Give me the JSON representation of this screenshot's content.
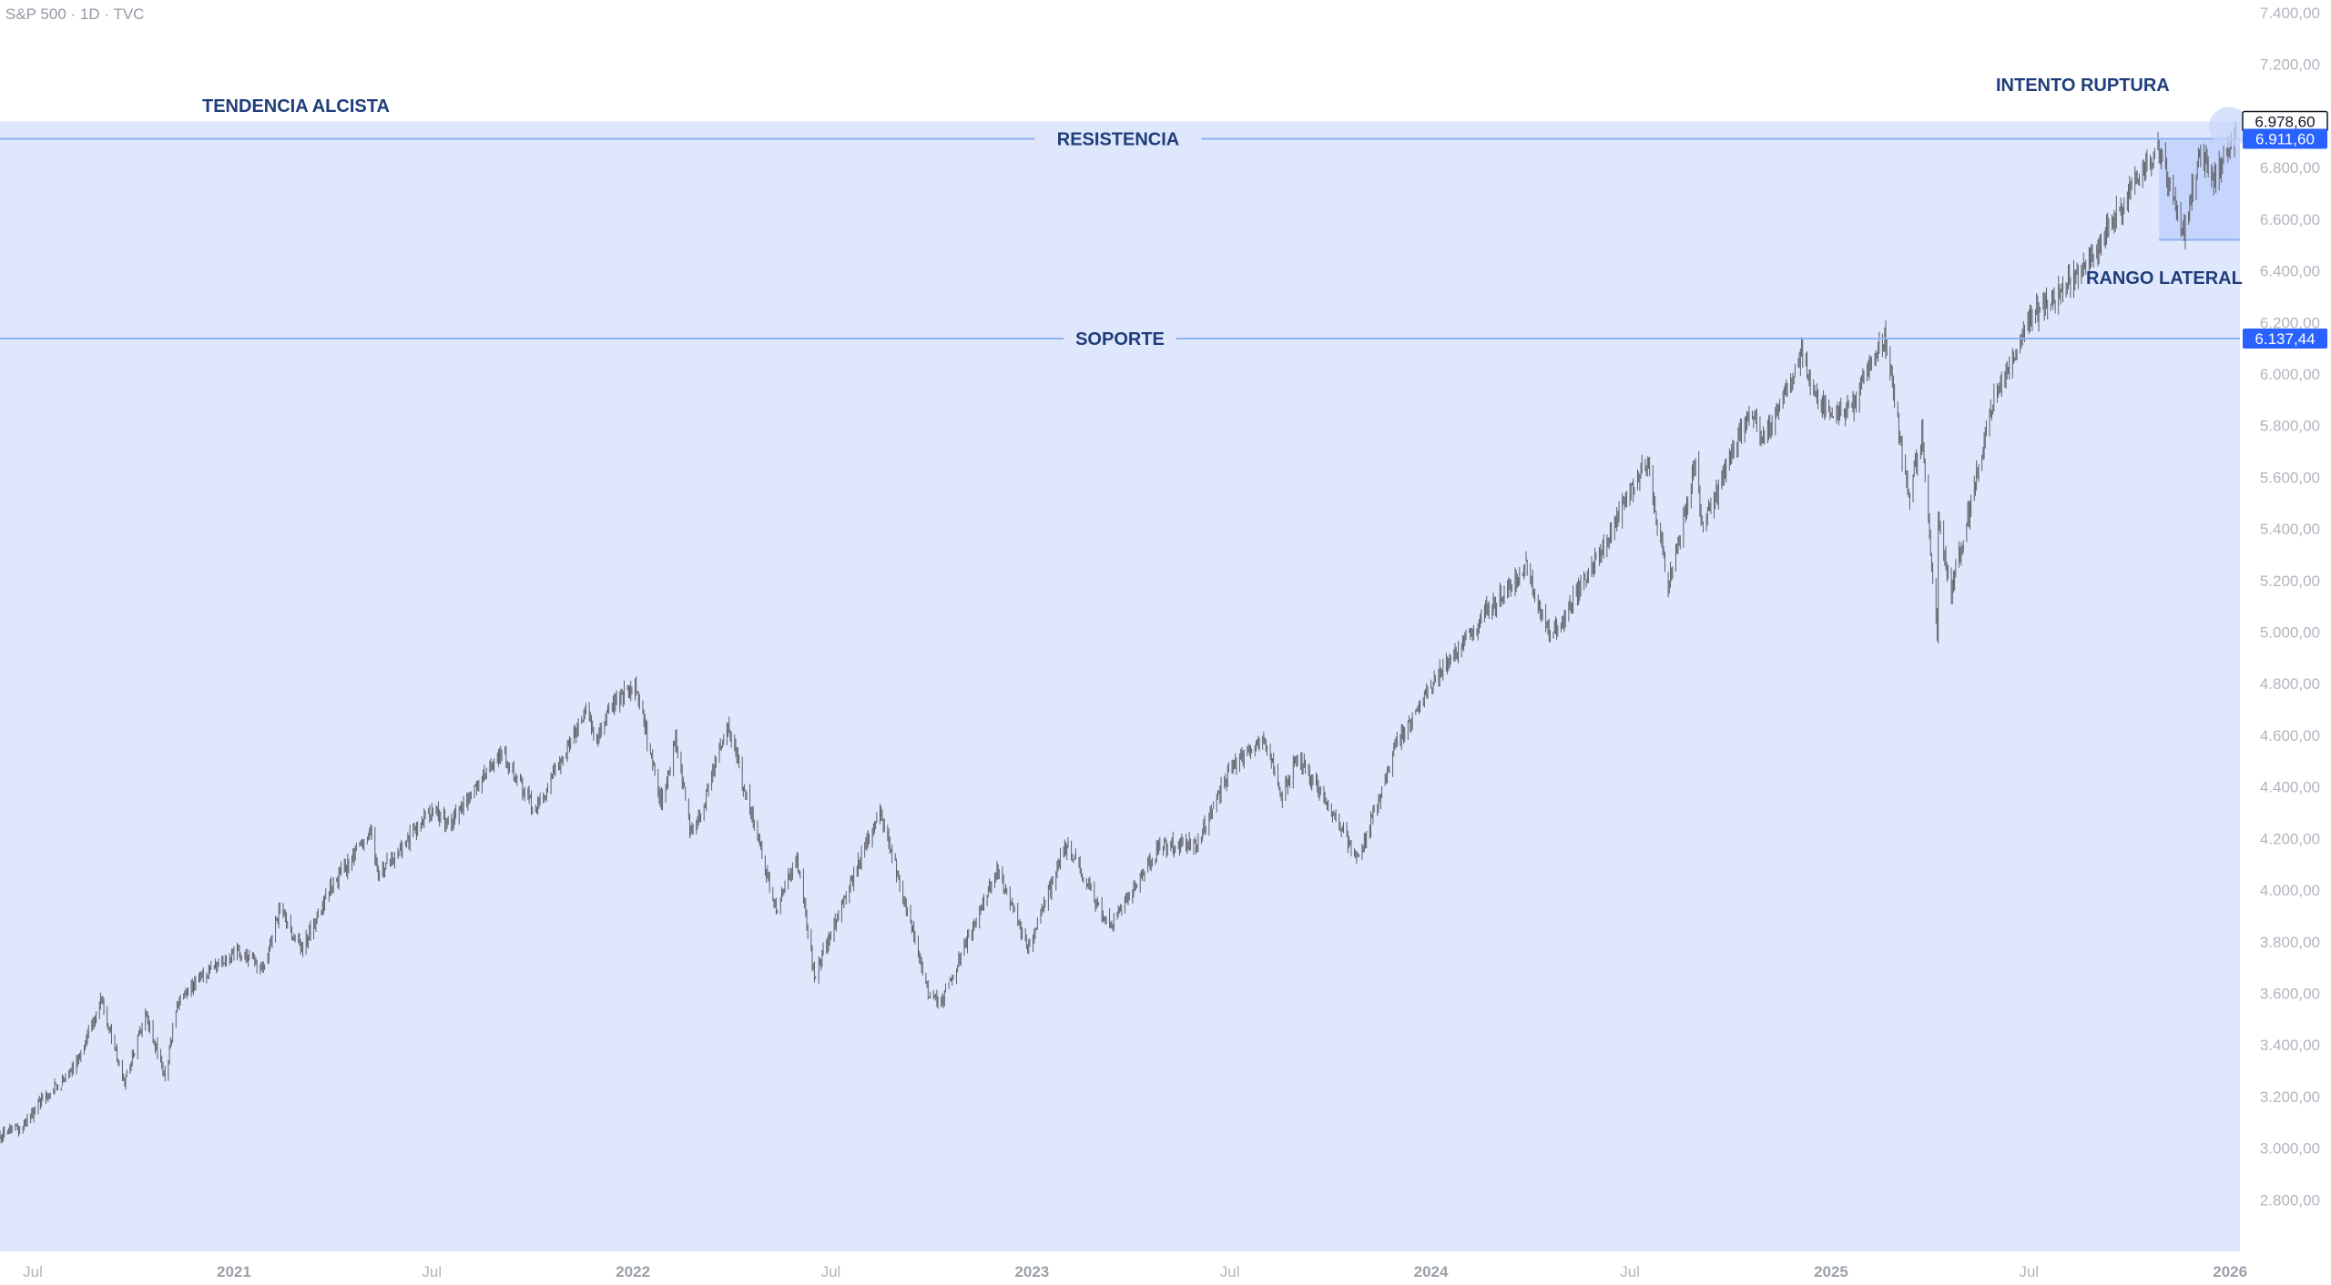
{
  "header": {
    "symbol": "S&P 500",
    "interval": "1D",
    "source": "TVC",
    "separator": " · "
  },
  "colors": {
    "background": "#ffffff",
    "zone_fill": "#dfe7fc",
    "range_fill": "#c6d5fb",
    "level_line": "#8fb0ef",
    "candle": "#5d5f66",
    "annotation_text": "#1f3d7a",
    "axis_text": "#b2b5be",
    "axis_year_text": "#9aa0aa",
    "tag_blue": "#2962ff",
    "tag_dark": "#131722"
  },
  "chart_data": {
    "type": "candlestick",
    "interval": "1D",
    "ylim": [
      2600,
      7400
    ],
    "y_ticks": [
      2800,
      3000,
      3200,
      3400,
      3600,
      3800,
      4000,
      4200,
      4400,
      4600,
      4800,
      5000,
      5200,
      5400,
      5600,
      5800,
      6000,
      6200,
      6400,
      6600,
      6800,
      7000,
      7200,
      7400
    ],
    "y_tick_labels": [
      "2.800,00",
      "3.000,00",
      "3.200,00",
      "3.400,00",
      "3.600,00",
      "3.800,00",
      "4.000,00",
      "4.200,00",
      "4.400,00",
      "4.600,00",
      "4.800,00",
      "5.000,00",
      "5.200,00",
      "5.400,00",
      "5.600,00",
      "5.800,00",
      "6.000,00",
      "6.200,00",
      "6.400,00",
      "6.600,00",
      "6.800,00",
      "7.000,00",
      "7.200,00",
      "7.400,00"
    ],
    "xlim": [
      "2020-06-01",
      "2026-01-10"
    ],
    "x_ticks": [
      {
        "date": "2020-07-01",
        "label": "Jul",
        "year": false
      },
      {
        "date": "2021-01-01",
        "label": "2021",
        "year": true
      },
      {
        "date": "2021-07-01",
        "label": "Jul",
        "year": false
      },
      {
        "date": "2022-01-01",
        "label": "2022",
        "year": true
      },
      {
        "date": "2022-07-01",
        "label": "Jul",
        "year": false
      },
      {
        "date": "2023-01-01",
        "label": "2023",
        "year": true
      },
      {
        "date": "2023-07-01",
        "label": "Jul",
        "year": false
      },
      {
        "date": "2024-01-01",
        "label": "2024",
        "year": true
      },
      {
        "date": "2024-07-01",
        "label": "Jul",
        "year": false
      },
      {
        "date": "2025-01-01",
        "label": "2025",
        "year": true
      },
      {
        "date": "2025-07-01",
        "label": "Jul",
        "year": false
      },
      {
        "date": "2026-01-01",
        "label": "2026",
        "year": true
      }
    ],
    "close_path": [
      [
        "2020-06-01",
        3050
      ],
      [
        "2020-06-20",
        3080
      ],
      [
        "2020-07-10",
        3190
      ],
      [
        "2020-07-31",
        3270
      ],
      [
        "2020-08-15",
        3380
      ],
      [
        "2020-09-02",
        3580
      ],
      [
        "2020-09-23",
        3240
      ],
      [
        "2020-10-12",
        3530
      ],
      [
        "2020-10-30",
        3270
      ],
      [
        "2020-11-09",
        3550
      ],
      [
        "2020-12-01",
        3660
      ],
      [
        "2020-12-31",
        3760
      ],
      [
        "2021-01-29",
        3710
      ],
      [
        "2021-02-12",
        3930
      ],
      [
        "2021-03-04",
        3770
      ],
      [
        "2021-04-01",
        4020
      ],
      [
        "2021-05-07",
        4230
      ],
      [
        "2021-05-12",
        4060
      ],
      [
        "2021-06-30",
        4300
      ],
      [
        "2021-07-19",
        4260
      ],
      [
        "2021-08-31",
        4520
      ],
      [
        "2021-09-02",
        4540
      ],
      [
        "2021-10-04",
        4300
      ],
      [
        "2021-11-18",
        4700
      ],
      [
        "2021-11-30",
        4570
      ],
      [
        "2021-12-10",
        4710
      ],
      [
        "2022-01-03",
        4800
      ],
      [
        "2022-01-27",
        4330
      ],
      [
        "2022-02-09",
        4590
      ],
      [
        "2022-02-24",
        4200
      ],
      [
        "2022-03-29",
        4630
      ],
      [
        "2022-05-12",
        3930
      ],
      [
        "2022-05-31",
        4130
      ],
      [
        "2022-06-16",
        3670
      ],
      [
        "2022-07-29",
        4130
      ],
      [
        "2022-08-16",
        4300
      ],
      [
        "2022-09-30",
        3580
      ],
      [
        "2022-10-12",
        3580
      ],
      [
        "2022-11-30",
        4080
      ],
      [
        "2022-12-28",
        3780
      ],
      [
        "2023-02-02",
        4180
      ],
      [
        "2023-03-13",
        3850
      ],
      [
        "2023-04-28",
        4170
      ],
      [
        "2023-05-31",
        4180
      ],
      [
        "2023-06-30",
        4450
      ],
      [
        "2023-07-31",
        4590
      ],
      [
        "2023-08-18",
        4370
      ],
      [
        "2023-09-01",
        4520
      ],
      [
        "2023-10-27",
        4120
      ],
      [
        "2023-11-30",
        4560
      ],
      [
        "2023-12-29",
        4770
      ],
      [
        "2024-02-09",
        5020
      ],
      [
        "2024-03-28",
        5250
      ],
      [
        "2024-04-19",
        4970
      ],
      [
        "2024-05-31",
        5280
      ],
      [
        "2024-07-16",
        5660
      ],
      [
        "2024-08-05",
        5190
      ],
      [
        "2024-08-30",
        5650
      ],
      [
        "2024-09-06",
        5410
      ],
      [
        "2024-10-18",
        5860
      ],
      [
        "2024-11-01",
        5730
      ],
      [
        "2024-12-06",
        6090
      ],
      [
        "2024-12-20",
        5880
      ],
      [
        "2025-01-13",
        5830
      ],
      [
        "2025-02-19",
        6140
      ],
      [
        "2025-03-13",
        5520
      ],
      [
        "2025-03-25",
        5770
      ],
      [
        "2025-04-08",
        4980
      ],
      [
        "2025-04-09",
        5450
      ],
      [
        "2025-04-21",
        5160
      ],
      [
        "2025-05-30",
        5910
      ],
      [
        "2025-06-30",
        6200
      ],
      [
        "2025-07-31",
        6340
      ],
      [
        "2025-08-29",
        6460
      ],
      [
        "2025-09-30",
        6690
      ],
      [
        "2025-10-28",
        6890
      ],
      [
        "2025-11-06",
        6720
      ],
      [
        "2025-11-20",
        6540
      ],
      [
        "2025-12-05",
        6870
      ],
      [
        "2025-12-18",
        6770
      ],
      [
        "2026-01-06",
        6940
      ]
    ],
    "last_price": 6978.6,
    "levels": [
      {
        "name": "RESISTENCIA",
        "value": 6911.6,
        "label": "6.911,60"
      },
      {
        "name": "SOPORTE",
        "value": 6137.44,
        "label": "6.137,44"
      }
    ],
    "trend_zone": {
      "label": "TENDENCIA ALCISTA",
      "top": 6978.6,
      "bottom": 2600
    },
    "range_box": {
      "label": "RANGO LATERAL",
      "start": "2025-10-28",
      "end": "2026-01-10",
      "top": 6911.6,
      "bottom": 6520
    },
    "annotations": {
      "breakout": "INTENTO RUPTURA"
    },
    "price_tags": [
      {
        "value": 6978.6,
        "label": "6.978,60",
        "style": "outline"
      },
      {
        "value": 6911.6,
        "label": "6.911,60",
        "style": "filled"
      },
      {
        "value": 6137.44,
        "label": "6.137,44",
        "style": "filled"
      }
    ]
  }
}
